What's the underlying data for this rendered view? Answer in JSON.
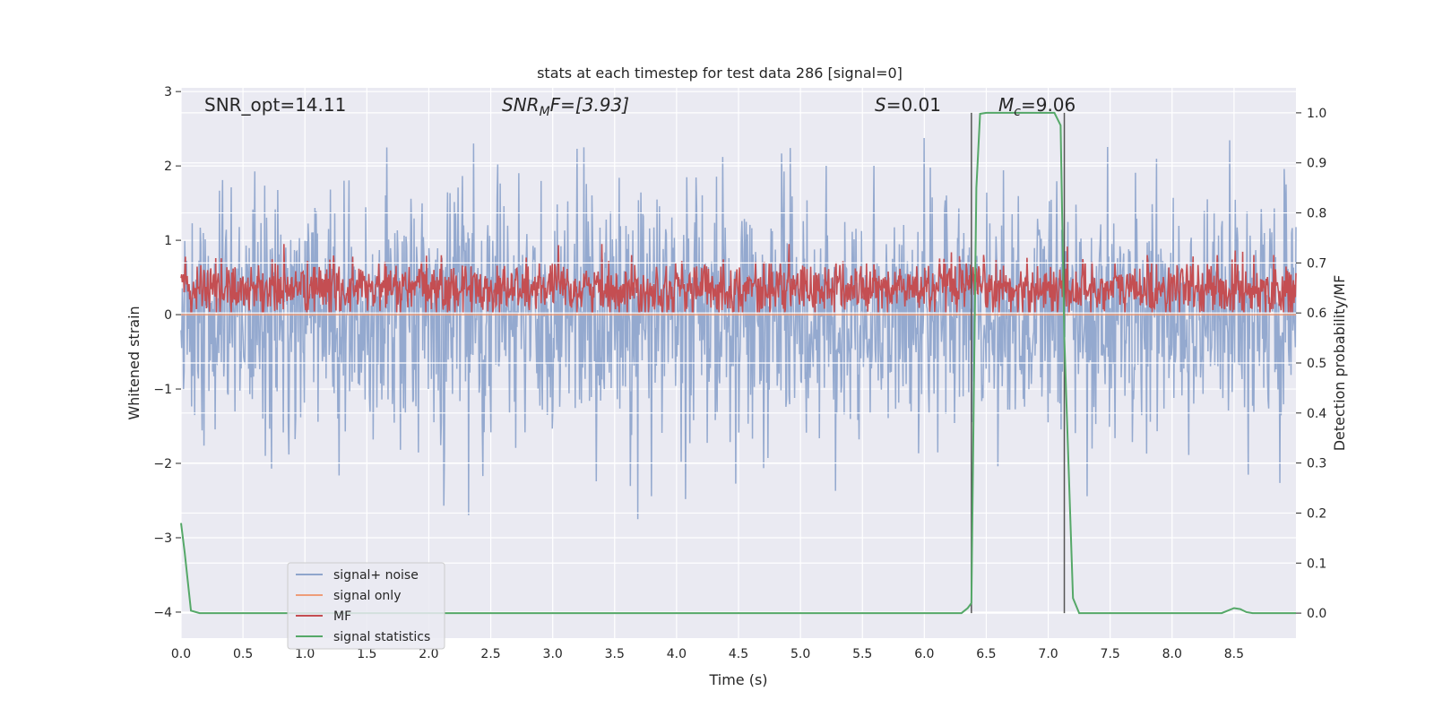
{
  "chart_data": {
    "type": "line",
    "title": "stats at each timestep for test data 286 [signal=0]",
    "xlabel": "Time (s)",
    "ylabel": "Whitened strain",
    "y2label": "Detection probability/MF",
    "xlim": [
      0,
      9
    ],
    "ylim": [
      -4.35,
      3.05
    ],
    "y2lim": [
      -0.05,
      1.05
    ],
    "xticks": [
      "0.0",
      "0.5",
      "1.0",
      "1.5",
      "2.0",
      "2.5",
      "3.0",
      "3.5",
      "4.0",
      "4.5",
      "5.0",
      "5.5",
      "6.0",
      "6.5",
      "7.0",
      "7.5",
      "8.0",
      "8.5"
    ],
    "xtick_values": [
      0,
      0.5,
      1,
      1.5,
      2,
      2.5,
      3,
      3.5,
      4,
      4.5,
      5,
      5.5,
      6,
      6.5,
      7,
      7.5,
      8,
      8.5
    ],
    "yticks": [
      "−4",
      "−3",
      "−2",
      "−1",
      "0",
      "1",
      "2",
      "3"
    ],
    "ytick_values": [
      -4,
      -3,
      -2,
      -1,
      0,
      1,
      2,
      3
    ],
    "y2ticks": [
      "0.0",
      "0.1",
      "0.2",
      "0.3",
      "0.4",
      "0.5",
      "0.6",
      "0.7",
      "0.8",
      "0.9",
      "1.0"
    ],
    "y2tick_values": [
      0,
      0.1,
      0.2,
      0.3,
      0.4,
      0.5,
      0.6,
      0.7,
      0.8,
      0.9,
      1.0
    ],
    "grid": true,
    "legend_position": "lower-left",
    "annotations": {
      "snr_opt": "SNR_opt=14.11",
      "snr_mf_sym": "SNR",
      "snr_mf_sub": "M",
      "snr_mf_rest": "F=[3.93]",
      "s_sym": "S",
      "s_rest": "=0.01",
      "mc_sym": "M",
      "mc_sub": "c",
      "mc_rest": "=9.06"
    },
    "vertical_lines_x": [
      6.38,
      7.13
    ],
    "series": [
      {
        "name": "signal+ noise",
        "color": "#8fa5cc",
        "axis": "left",
        "noise": {
          "samples": 1800,
          "sigma": 0.82,
          "envelope_max": 2.9,
          "envelope_min": -4.0
        }
      },
      {
        "name": "signal only",
        "color": "#ee9d79",
        "axis": "left",
        "x": [
          0,
          9
        ],
        "y": [
          0,
          0
        ]
      },
      {
        "name": "MF",
        "color": "#c44e52",
        "axis": "left",
        "noise": {
          "samples": 1800,
          "mean": 0.35,
          "sigma": 0.18,
          "min": 0.03,
          "max": 0.95
        }
      },
      {
        "name": "signal statistics",
        "color": "#55a868",
        "axis": "right",
        "x": [
          0,
          0.03,
          0.08,
          0.15,
          6.3,
          6.35,
          6.38,
          6.4,
          6.42,
          6.45,
          6.5,
          7.0,
          7.05,
          7.1,
          7.13,
          7.15,
          7.2,
          7.25,
          8.4,
          8.45,
          8.5,
          8.55,
          8.6,
          8.65,
          9.0
        ],
        "y": [
          0.18,
          0.12,
          0.005,
          0.0,
          0.0,
          0.01,
          0.02,
          0.45,
          0.85,
          0.998,
          1.0,
          1.0,
          1.0,
          0.975,
          0.55,
          0.4,
          0.03,
          0.0,
          0.0,
          0.005,
          0.01,
          0.008,
          0.002,
          0.0,
          0.0
        ]
      }
    ]
  }
}
